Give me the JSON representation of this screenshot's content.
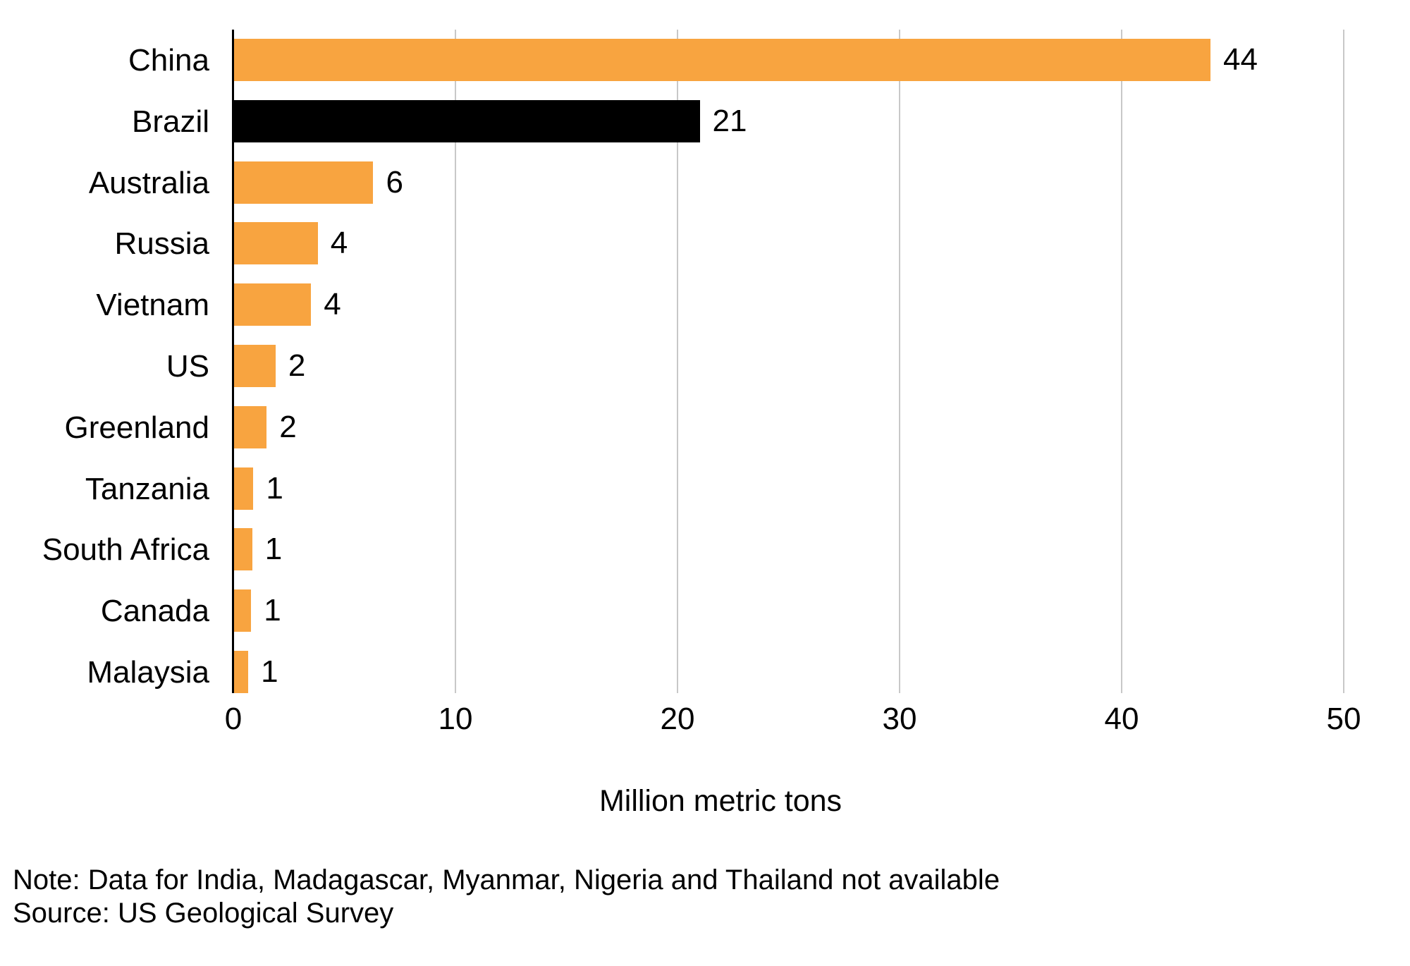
{
  "chart_data": {
    "type": "bar",
    "orientation": "horizontal",
    "categories": [
      "China",
      "Brazil",
      "Australia",
      "Russia",
      "Vietnam",
      "US",
      "Greenland",
      "Tanzania",
      "South Africa",
      "Canada",
      "Malaysia"
    ],
    "values": [
      44,
      21,
      6,
      4,
      4,
      2,
      2,
      1,
      1,
      1,
      1
    ],
    "values_precise": [
      44,
      21,
      6.3,
      3.8,
      3.5,
      1.9,
      1.5,
      0.9,
      0.85,
      0.8,
      0.67
    ],
    "value_labels": [
      "44",
      "21",
      "6",
      "4",
      "4",
      "2",
      "2",
      "1",
      "1",
      "1",
      "1"
    ],
    "bar_colors": [
      "#F8A440",
      "#000000",
      "#F8A440",
      "#F8A440",
      "#F8A440",
      "#F8A440",
      "#F8A440",
      "#F8A440",
      "#F8A440",
      "#F8A440",
      "#F8A440"
    ],
    "xlabel": "Million metric tons",
    "xlim": [
      0,
      50
    ],
    "xticks": [
      0,
      10,
      20,
      30,
      40,
      50
    ],
    "grid": true,
    "colors": {
      "bar_orange": "#F8A440",
      "bar_black": "#000000",
      "gridline": "#C8C8C8",
      "axis": "#000000",
      "text": "#000000"
    },
    "note": "Note: Data for India, Madagascar, Myanmar, Nigeria and Thailand not available",
    "source": "Source: US Geological Survey"
  }
}
